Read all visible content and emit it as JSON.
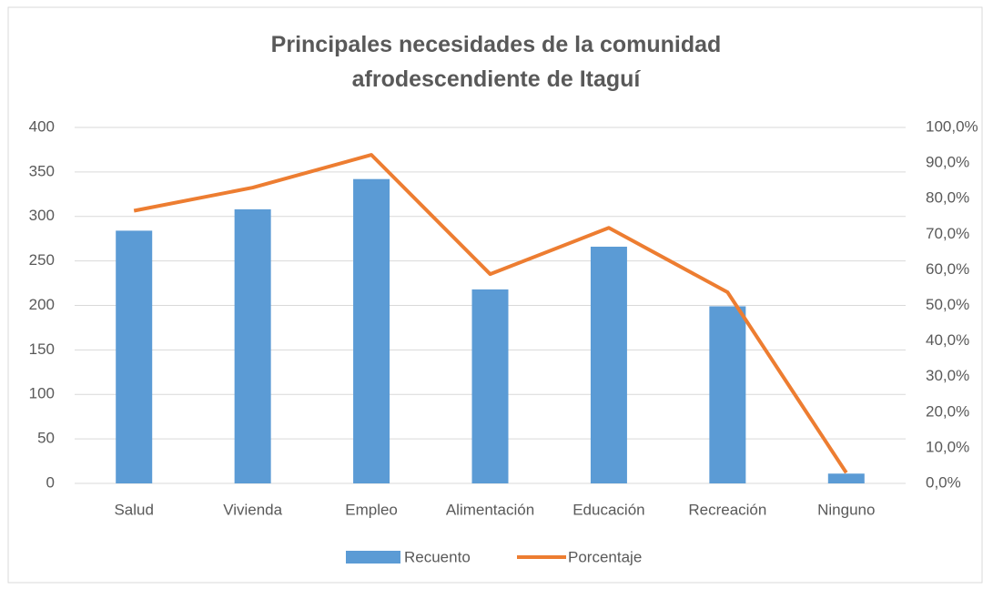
{
  "chart_data": {
    "type": "bar_line",
    "title": "Principales necesidades de la comunidad afrodescendiente de Itaguí",
    "categories": [
      "Salud",
      "Vivienda",
      "Empleo",
      "Alimentación",
      "Educación",
      "Recreación",
      "Ninguno"
    ],
    "series": [
      {
        "name": "Recuento",
        "type": "bar",
        "color": "#5b9bd5",
        "values": [
          284,
          308,
          342,
          218,
          266,
          199,
          11
        ]
      },
      {
        "name": "Porcentaje",
        "type": "line",
        "axis": "y2",
        "color": "#ed7d31",
        "values": [
          76.6,
          83.1,
          92.3,
          58.8,
          71.8,
          53.7,
          3.0
        ]
      }
    ],
    "ylim": [
      0,
      400
    ],
    "yticks": [
      0,
      50,
      100,
      150,
      200,
      250,
      300,
      350,
      400
    ],
    "y2lim": [
      0,
      100
    ],
    "y2ticks": [
      {
        "value": 0,
        "label": "0,0%"
      },
      {
        "value": 10,
        "label": "10,0%"
      },
      {
        "value": 20,
        "label": "20,0%"
      },
      {
        "value": 30,
        "label": "30,0%"
      },
      {
        "value": 40,
        "label": "40,0%"
      },
      {
        "value": 50,
        "label": "50,0%"
      },
      {
        "value": 60,
        "label": "60,0%"
      },
      {
        "value": 70,
        "label": "70,0%"
      },
      {
        "value": 80,
        "label": "80,0%"
      },
      {
        "value": 90,
        "label": "90,0%"
      },
      {
        "value": 100,
        "label": "100,0%"
      }
    ],
    "grid": true,
    "legend": "bottom"
  }
}
